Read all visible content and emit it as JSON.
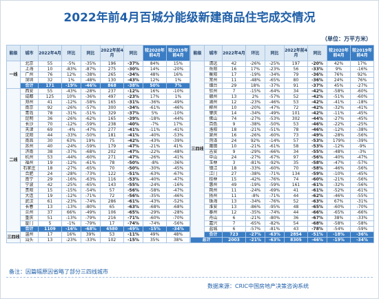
{
  "header": {
    "title": "2022年前4月百城分能级新建商品住宅成交情况",
    "unit": "（单位：万平方米）"
  },
  "columns": [
    "能级",
    "城市",
    "2022年4月",
    "环比",
    "同比",
    "2022年前4月",
    "同比",
    "较2020年前4月",
    "较2019年前4月"
  ],
  "left": {
    "groups": [
      {
        "tier": "一线",
        "rows": [
          [
            "北京",
            "55",
            "-5%",
            "-35%",
            "196",
            "-37%",
            "84%",
            "15%"
          ],
          [
            "上海",
            "10",
            "-83%",
            "-87%",
            "275",
            "-30%",
            "14%",
            "-20%"
          ],
          [
            "广州",
            "76",
            "12%",
            "-38%",
            "265",
            "-34%",
            "48%",
            "16%"
          ],
          [
            "深圳",
            "32",
            "1%",
            "-48%",
            "130",
            "-43%",
            "12%",
            "1%"
          ]
        ],
        "total": [
          "合计",
          "171",
          "-19%",
          "-46%",
          "868",
          "-38%",
          "50%",
          "7%"
        ]
      },
      {
        "tier": "二线",
        "rows": [
          [
            "西安",
            "55",
            "-43%",
            "-28%",
            "237",
            "-12%",
            "16%",
            "-10%"
          ],
          [
            "成都",
            "125",
            "10%",
            "-36%",
            "497",
            "-23%",
            "17%",
            "1%"
          ],
          [
            "郑州",
            "41",
            "-12%",
            "-58%",
            "165",
            "-31%",
            "-36%",
            "-49%"
          ],
          [
            "南京",
            "92",
            "-26%",
            "-57%",
            "300",
            "-34%",
            "-61%",
            "-46%"
          ],
          [
            "青岛",
            "78",
            "-31%",
            "-51%",
            "329",
            "-37%",
            "5%",
            "-10%"
          ],
          [
            "昆明",
            "36",
            "-26%",
            "-62%",
            "165",
            "-39%",
            "-18%",
            "-44%"
          ],
          [
            "长沙",
            "70",
            "-12%",
            "-59%",
            "238",
            "-40%",
            "-7%",
            "17%"
          ],
          [
            "天津",
            "69",
            "-4%",
            "-47%",
            "277",
            "-41%",
            "-11%",
            "-41%"
          ],
          [
            "沈阳",
            "44",
            "-33%",
            "-50%",
            "181",
            "-41%",
            "-40%",
            "-53%"
          ],
          [
            "南昌",
            "30",
            "63%",
            "19%",
            "75",
            "-42%",
            "-43%",
            "-39%"
          ],
          [
            "苏州",
            "40",
            "-24%",
            "-59%",
            "179",
            "-47%",
            "-21%",
            "41%"
          ],
          [
            "济南",
            "38",
            "-37%",
            "-68%",
            "202",
            "-47%",
            "-22%",
            "-48%"
          ],
          [
            "杭州",
            "53",
            "-44%",
            "-60%",
            "271",
            "-47%",
            "-26%",
            "-41%"
          ],
          [
            "福州",
            "19",
            "-12%",
            "-61%",
            "78",
            "-50%",
            "-8%",
            "-36%"
          ],
          [
            "石家庄",
            "18",
            "-27%",
            "-65%",
            "70",
            "-50%",
            "-30%",
            "-45%"
          ],
          [
            "合肥",
            "24",
            "-28%",
            "-73%",
            "122",
            "-51%",
            "-63%",
            "-67%"
          ],
          [
            "南宁",
            "29",
            "-16%",
            "-63%",
            "116",
            "-53%",
            "-40%",
            "-47%"
          ],
          [
            "宁波",
            "42",
            "-25%",
            "-65%",
            "143",
            "-55%",
            "-24%",
            "-16%"
          ],
          [
            "贵阳",
            "15",
            "-15%",
            "-54%",
            "57",
            "-56%",
            "-58%",
            "-47%"
          ],
          [
            "大连",
            "19",
            "-12%",
            "-71%",
            "72",
            "-56%",
            "-35%",
            "-46%"
          ],
          [
            "武汉",
            "61",
            "-23%",
            "-74%",
            "286",
            "-61%",
            "-43%",
            "-52%"
          ],
          [
            "长春",
            "13",
            "-13%",
            "-80%",
            "65",
            "-63%",
            "-68%",
            "-68%"
          ],
          [
            "兰州",
            "37",
            "66%",
            "-49%",
            "106",
            "-65%",
            "-29%",
            "-28%"
          ],
          [
            "重庆",
            "51",
            "-13%",
            "-79%",
            "216",
            "-71%",
            "-60%",
            "-70%"
          ],
          [
            "厦门",
            "5",
            "-1%",
            "-79%",
            "17",
            "-74%",
            "-74%",
            "-56%"
          ]
        ],
        "total": [
          "合计",
          "1109",
          "-16%",
          "-68%",
          "4580",
          "-49%",
          "-15%",
          "-34%"
        ]
      },
      {
        "tier": "三四线",
        "rows": [
          [
            "温州",
            "17",
            "16%",
            "39%",
            "53",
            "-11%",
            "49%",
            "48%"
          ],
          [
            "汕头",
            "13",
            "-23%",
            "-33%",
            "102",
            "-15%",
            "35%",
            "38%"
          ]
        ]
      }
    ]
  },
  "right": {
    "groups": [
      {
        "tier": "三四线",
        "rows": [
          [
            "清远",
            "42",
            "-26%",
            "-25%",
            "197",
            "-20%",
            "42%",
            "17%"
          ],
          [
            "岳阳",
            "16",
            "17%",
            "-23%",
            "56",
            "-33%",
            "9%",
            "-16%"
          ],
          [
            "衡阳",
            "17",
            "-19%",
            "-34%",
            "79",
            "-36%",
            "76%",
            "92%"
          ],
          [
            "常州",
            "11",
            "-48%",
            "-65%",
            "80",
            "-36%",
            "24%",
            "76%"
          ],
          [
            "烟台",
            "29",
            "18%",
            "-37%",
            "91",
            "-37%",
            "45%",
            "-27%"
          ],
          [
            "钦州",
            "7",
            "-15%",
            "-64%",
            "34",
            "-42%",
            "-58%",
            "-60%"
          ],
          [
            "赣州",
            "13",
            "2%",
            "-57%",
            "52",
            "-42%",
            "-51%",
            "-60%"
          ],
          [
            "湖州",
            "12",
            "-23%",
            "-46%",
            "53",
            "-42%",
            "-41%",
            "-18%"
          ],
          [
            "柳州",
            "10",
            "-20%",
            "-47%",
            "72",
            "-42%",
            "-32%",
            "-41%"
          ],
          [
            "肇庆",
            "14",
            "-34%",
            "-49%",
            "101",
            "-42%",
            "-11%",
            "-45%"
          ],
          [
            "佛山",
            "74",
            "-27%",
            "-53%",
            "302",
            "-44%",
            "-27%",
            "-45%"
          ],
          [
            "百色",
            "9",
            "-38%",
            "-50%",
            "53",
            "-46%",
            "-22%",
            "-25%"
          ],
          [
            "洛阳",
            "18",
            "-21%",
            "-51%",
            "78",
            "-46%",
            "-12%",
            "-38%"
          ],
          [
            "泉州",
            "16",
            "-26%",
            "-60%",
            "73",
            "-49%",
            "-28%",
            "-56%"
          ],
          [
            "菏泽",
            "24",
            "92%",
            "-14%",
            "57",
            "-53%",
            "179%",
            "-39%"
          ],
          [
            "莆田",
            "10",
            "-21%",
            "-61%",
            "58",
            "-53%",
            "-12%",
            "-9%"
          ],
          [
            "吉安",
            "9",
            "-29%",
            "-66%",
            "34",
            "-55%",
            "-48%",
            "-3%"
          ],
          [
            "中山",
            "24",
            "-27%",
            "-67%",
            "97",
            "-56%",
            "-40%",
            "-47%"
          ],
          [
            "玉林",
            "3",
            "-81%",
            "-92%",
            "35",
            "-58%",
            "-47%",
            "-57%"
          ],
          [
            "镇江",
            "18",
            "-33%",
            "-60%",
            "70",
            "-58%",
            "-46%",
            "-56%"
          ],
          [
            "江门",
            "27",
            "-38%",
            "-71%",
            "134",
            "-59%",
            "-10%",
            "-45%"
          ],
          [
            "桂林",
            "15",
            "-42%",
            "-76%",
            "74",
            "-60%",
            "-21%",
            "-56%"
          ],
          [
            "惠州",
            "49",
            "-19%",
            "-59%",
            "161",
            "-61%",
            "-32%",
            "-56%"
          ],
          [
            "荆州",
            "11",
            "-24%",
            "-69%",
            "41",
            "-61%",
            "-52%",
            "-61%"
          ],
          [
            "扬州",
            "11",
            "-8%",
            "-71%",
            "44",
            "-62%",
            "-46%",
            "-55%"
          ],
          [
            "珠海",
            "13",
            "-34%",
            "-76%",
            "52",
            "-63%",
            "67%",
            "-31%"
          ],
          [
            "淮安",
            "13",
            "-86%",
            "-95%",
            "48",
            "-65%",
            "-60%",
            "-70%"
          ],
          [
            "泰州",
            "12",
            "-35%",
            "-74%",
            "44",
            "-66%",
            "-65%",
            "-66%"
          ],
          [
            "舟山",
            "6",
            "-21%",
            "-80%",
            "36",
            "-67%",
            "38%",
            "-33%"
          ],
          [
            "嘉兴",
            "7",
            "-65%",
            "-82%",
            "54",
            "-68%",
            "-58%",
            "-58%"
          ],
          [
            "盐城",
            "6",
            "-57%",
            "-81%",
            "43",
            "-78%",
            "-54%",
            "-59%"
          ]
        ],
        "total": [
          "合计",
          "723",
          "-27%",
          "-63%",
          "2854",
          "-51%",
          "-18%",
          "-36%"
        ]
      }
    ],
    "grand_total": [
      "总计",
      "2003",
      "-21%",
      "-63%",
      "8305",
      "-46%",
      "-19%",
      "-34%"
    ]
  },
  "footer": {
    "note": "备注：因篇幅原因省略了部分三四线城市",
    "source": "数据来源：CRIC中国房地产决策咨询系统"
  }
}
